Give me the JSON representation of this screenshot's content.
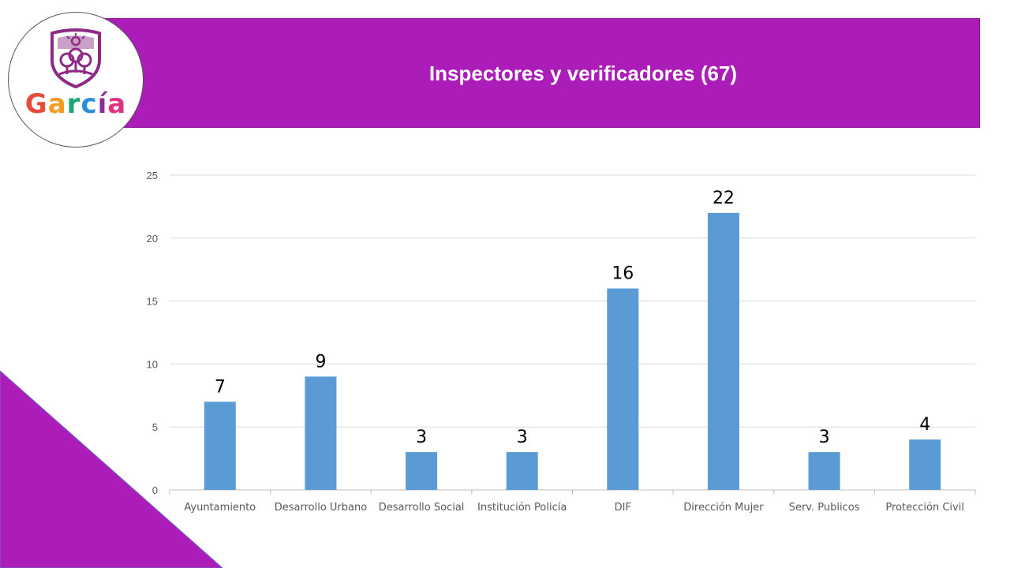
{
  "header": {
    "title": "Inspectores y verificadores (67)"
  },
  "logo": {
    "text": "García",
    "letters": [
      "G",
      "a",
      "r",
      "c",
      "í",
      "a"
    ],
    "letter_colors": [
      "#e84a3a",
      "#f39a1f",
      "#1fa37a",
      "#2a8fd6",
      "#8a2d9c",
      "#e0337f"
    ],
    "crest_color": "#8c2a86"
  },
  "colors": {
    "accent": "#ac1cb8",
    "bar": "#5b9bd5",
    "grid": "#d9d9d9",
    "axis_text": "#595959",
    "label_text": "#000000"
  },
  "chart_data": {
    "type": "bar",
    "categories": [
      "Ayuntamiento",
      "Desarrollo Urbano",
      "Desarrollo Social",
      "Institución Policía",
      "DIF",
      "Dirección Mujer",
      "Serv. Publicos",
      "Protección Civil"
    ],
    "values": [
      7,
      9,
      3,
      3,
      16,
      22,
      3,
      4
    ],
    "ylim": [
      0,
      25
    ],
    "yticks": [
      0,
      5,
      10,
      15,
      20,
      25
    ],
    "title": "",
    "xlabel": "",
    "ylabel": "",
    "grid": true,
    "legend": "none",
    "data_labels": true
  }
}
